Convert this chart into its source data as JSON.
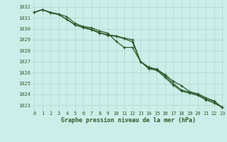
{
  "title": "Graphe pression niveau de la mer (hPa)",
  "background_color": "#cceee8",
  "grid_color": "#aad8d0",
  "line_color": "#2d5a2d",
  "hours": [
    0,
    1,
    2,
    3,
    4,
    5,
    6,
    7,
    8,
    9,
    10,
    11,
    12,
    13,
    14,
    15,
    16,
    17,
    18,
    19,
    20,
    21,
    22,
    23
  ],
  "series1": [
    1031.5,
    1031.75,
    1031.45,
    1031.3,
    1030.85,
    1030.35,
    1030.15,
    1029.95,
    1029.65,
    1029.45,
    1029.35,
    1029.15,
    1029.0,
    1027.0,
    1026.4,
    1026.25,
    1025.7,
    1025.0,
    1024.4,
    1024.2,
    1024.0,
    1023.55,
    1023.35,
    1022.8
  ],
  "series2": [
    1031.5,
    1031.75,
    1031.45,
    1031.3,
    1030.85,
    1030.35,
    1030.1,
    1029.9,
    1029.6,
    1029.4,
    1029.3,
    1029.1,
    1028.8,
    1027.0,
    1026.35,
    1026.2,
    1025.55,
    1024.85,
    1024.3,
    1024.1,
    1023.9,
    1023.5,
    1023.2,
    1022.8
  ],
  "series3": [
    1031.5,
    1031.75,
    1031.5,
    1031.35,
    1031.1,
    1030.5,
    1030.2,
    1030.1,
    1029.8,
    1029.6,
    1028.85,
    1028.3,
    1028.3,
    1027.0,
    1026.5,
    1026.3,
    1025.8,
    1025.2,
    1024.8,
    1024.25,
    1024.05,
    1023.7,
    1023.4,
    1022.8
  ],
  "ylim_min": 1022.5,
  "ylim_max": 1032.5,
  "yticks": [
    1023,
    1024,
    1025,
    1026,
    1027,
    1028,
    1029,
    1030,
    1031,
    1032
  ],
  "xticks": [
    0,
    1,
    2,
    3,
    4,
    5,
    6,
    7,
    8,
    9,
    10,
    11,
    12,
    13,
    14,
    15,
    16,
    17,
    18,
    19,
    20,
    21,
    22,
    23
  ],
  "xlabel_fontsize": 6.0,
  "tick_fontsize": 5.0,
  "linewidth": 0.9,
  "markersize": 3.0
}
